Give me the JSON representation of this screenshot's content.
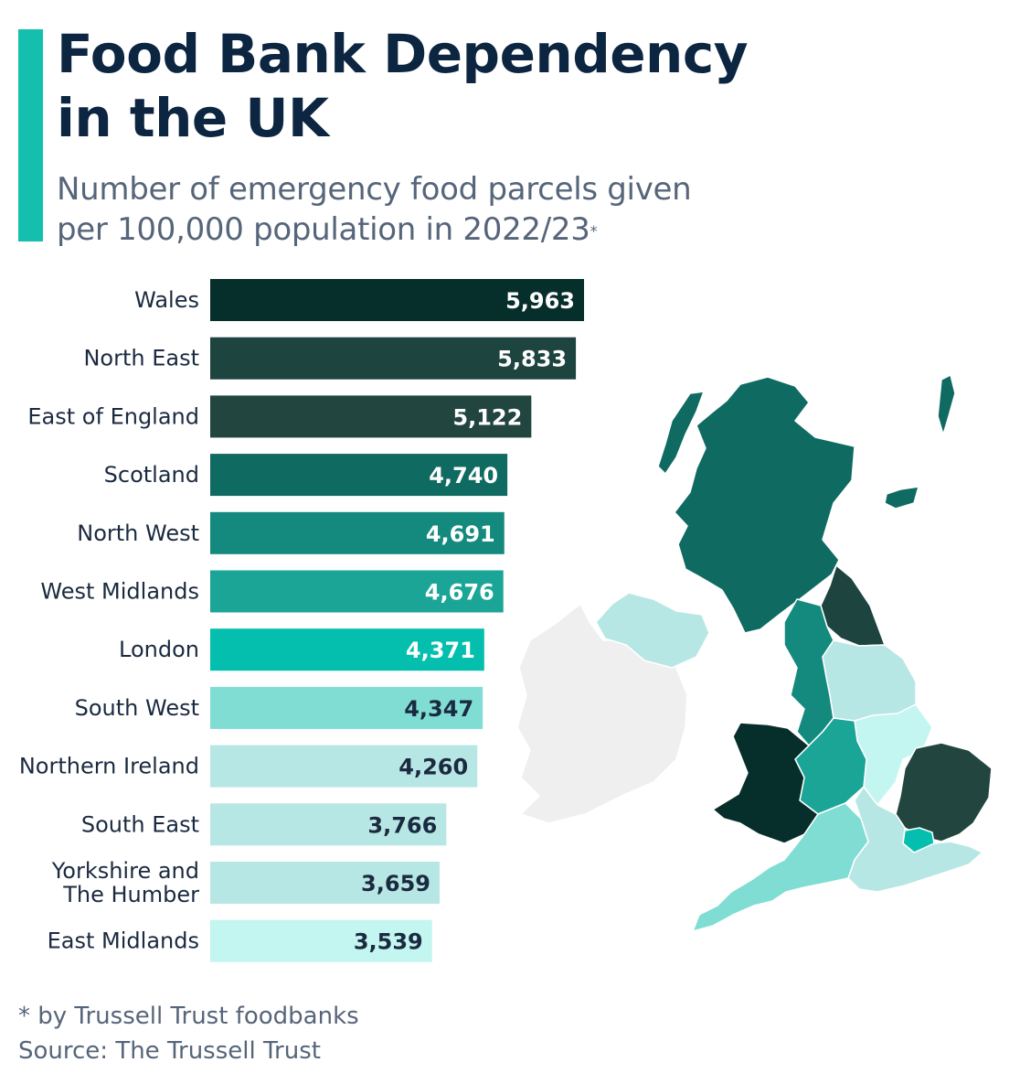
{
  "header": {
    "title": "Food Bank Dependency\nin the UK",
    "subtitle": "Number of emergency food parcels given\nper 100,000 population in 2022/23",
    "subtitle_marker": "*"
  },
  "colors": {
    "accent": "#14bfae",
    "title": "#0c2541",
    "map_other": "#efefef"
  },
  "chart_data": {
    "type": "bar",
    "orientation": "horizontal",
    "categories": [
      "Wales",
      "North East",
      "East of England",
      "Scotland",
      "North West",
      "West Midlands",
      "London",
      "South West",
      "Northern Ireland",
      "South East",
      "Yorkshire and\nThe Humber",
      "East Midlands"
    ],
    "values": [
      5963,
      5833,
      5122,
      4740,
      4691,
      4676,
      4371,
      4347,
      4260,
      3766,
      3659,
      3539
    ],
    "value_labels": [
      "5,963",
      "5,833",
      "5,122",
      "4,740",
      "4,691",
      "4,676",
      "4,371",
      "4,347",
      "4,260",
      "3,766",
      "3,659",
      "3,539"
    ],
    "colors": [
      "#062e2a",
      "#1e443f",
      "#22453f",
      "#0f6a61",
      "#138a7d",
      "#1ba597",
      "#04bfae",
      "#7fddd4",
      "#b7e7e4",
      "#b7e7e4",
      "#b7e7e4",
      "#c3f5f1"
    ],
    "value_label_colors": [
      "#ffffff",
      "#ffffff",
      "#ffffff",
      "#ffffff",
      "#ffffff",
      "#ffffff",
      "#ffffff",
      "#1b2a40",
      "#1b2a40",
      "#1b2a40",
      "#1b2a40",
      "#1b2a40"
    ],
    "xlim": [
      0,
      5963
    ],
    "grid": false,
    "legend": "none"
  },
  "map": {
    "regions": [
      {
        "name": "Scotland",
        "color": "#0f6a61"
      },
      {
        "name": "North East",
        "color": "#1e443f"
      },
      {
        "name": "North West",
        "color": "#138a7d"
      },
      {
        "name": "Yorkshire and The Humber",
        "color": "#b7e7e4"
      },
      {
        "name": "East Midlands",
        "color": "#c3f5f1"
      },
      {
        "name": "West Midlands",
        "color": "#1ba597"
      },
      {
        "name": "Wales",
        "color": "#062e2a"
      },
      {
        "name": "East of England",
        "color": "#22453f"
      },
      {
        "name": "London",
        "color": "#04bfae"
      },
      {
        "name": "South East",
        "color": "#b7e7e4"
      },
      {
        "name": "South West",
        "color": "#7fddd4"
      },
      {
        "name": "Northern Ireland",
        "color": "#b7e7e4"
      }
    ]
  },
  "footnote": {
    "note": "* by Trussell Trust foodbanks",
    "source": "Source: The Trussell Trust"
  }
}
